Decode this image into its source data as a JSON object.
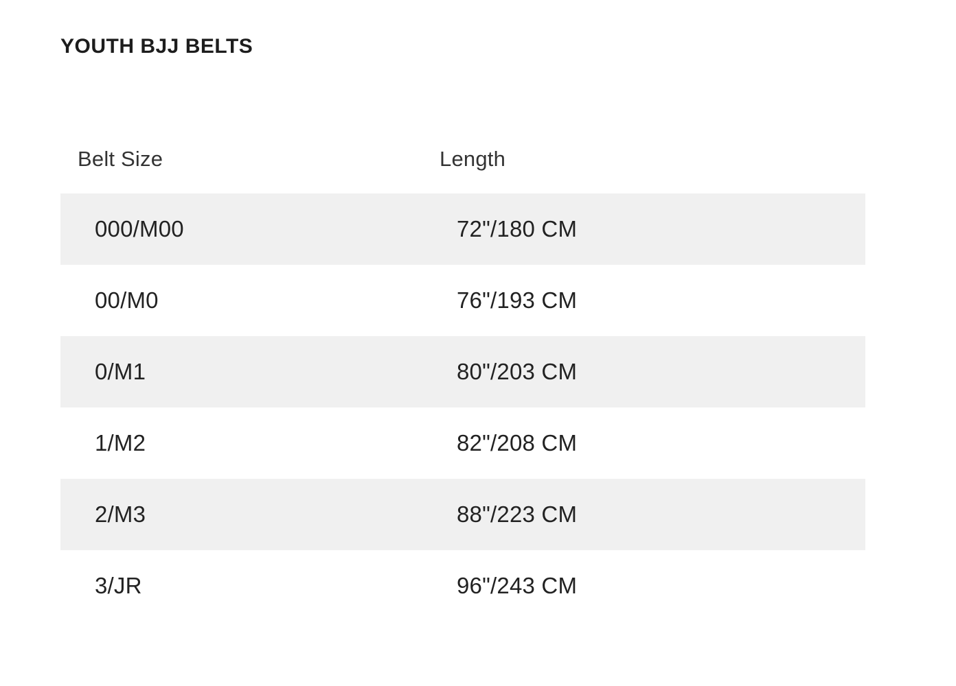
{
  "title": "YOUTH BJJ BELTS",
  "table": {
    "headers": [
      "Belt Size",
      "Length"
    ],
    "rows": [
      {
        "belt_size": "000/M00",
        "length": "72\"/180 CM"
      },
      {
        "belt_size": "00/M0",
        "length": "76\"/193 CM"
      },
      {
        "belt_size": "0/M1",
        "length": "80\"/203 CM"
      },
      {
        "belt_size": "1/M2",
        "length": "82\"/208 CM"
      },
      {
        "belt_size": "2/M3",
        "length": "88\"/223 CM"
      },
      {
        "belt_size": "3/JR",
        "length": "96\"/243 CM"
      }
    ],
    "stripe_color": "#f0f0f0",
    "row_background": "#ffffff",
    "cell_text_color": "#222222",
    "header_text_color": "#333333"
  },
  "colors": {
    "page_background": "#ffffff",
    "title_color": "#1d1d1d"
  }
}
